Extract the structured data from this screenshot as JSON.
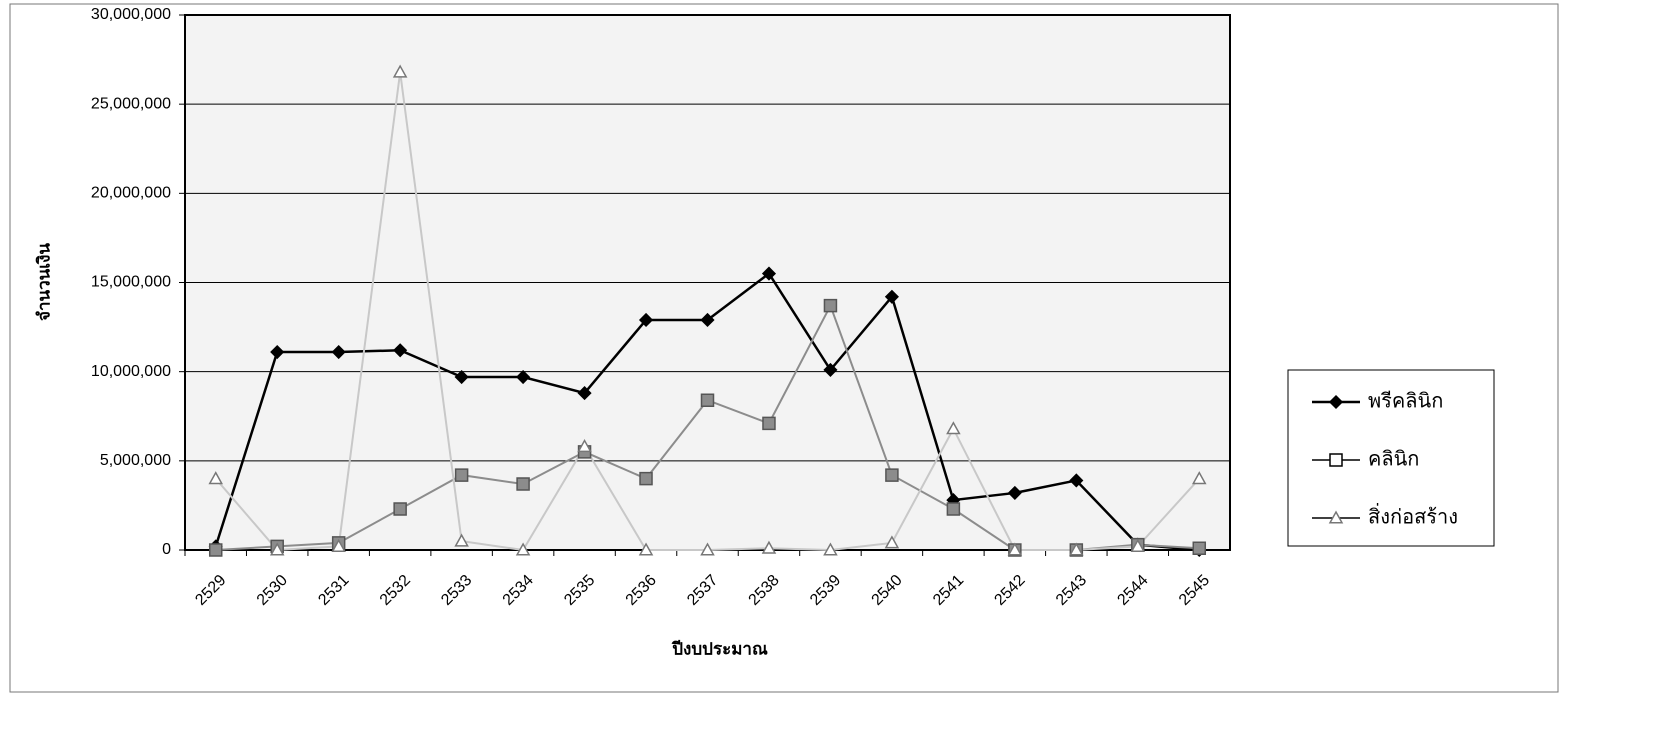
{
  "chart_data": {
    "type": "line",
    "x_label": "ปีงบประมาณ",
    "y_label": "จำนวนเงิน",
    "categories": [
      "2529",
      "2530",
      "2531",
      "2532",
      "2533",
      "2534",
      "2535",
      "2536",
      "2537",
      "2538",
      "2539",
      "2540",
      "2541",
      "2542",
      "2543",
      "2544",
      "2545"
    ],
    "series": [
      {
        "name": "พรีคลินิก",
        "color": "#000000",
        "marker": "diamond",
        "values": [
          200000,
          11100000,
          11100000,
          11200000,
          9700000,
          9700000,
          8800000,
          12900000,
          12900000,
          15500000,
          10100000,
          14200000,
          2800000,
          3200000,
          3900000,
          300000,
          0
        ]
      },
      {
        "name": "คลินิก",
        "color": "#8c8c8c",
        "marker": "square",
        "values": [
          0,
          200000,
          400000,
          2300000,
          4200000,
          3700000,
          5500000,
          4000000,
          8400000,
          7100000,
          13700000,
          4200000,
          2300000,
          0,
          0,
          300000,
          100000
        ]
      },
      {
        "name": "สิ่งก่อสร้าง",
        "color": "#c8c8c8",
        "marker": "triangle",
        "values": [
          4000000,
          0,
          200000,
          26800000,
          500000,
          0,
          5800000,
          0,
          0,
          100000,
          0,
          400000,
          6800000,
          0,
          0,
          200000,
          4000000
        ]
      }
    ],
    "ylim": [
      0,
      30000000
    ],
    "yticks": [
      0,
      {
        "value": 5000000,
        "label": "5,000,000"
      },
      {
        "value": 10000000,
        "label": "10,000,000"
      },
      {
        "value": 15000000,
        "label": "15,000,000"
      },
      {
        "value": 20000000,
        "label": "20,000,000"
      },
      {
        "value": 25000000,
        "label": "25,000,000"
      },
      {
        "value": 30000000,
        "label": "30,000,000"
      }
    ],
    "grid": true,
    "legend": "right"
  }
}
